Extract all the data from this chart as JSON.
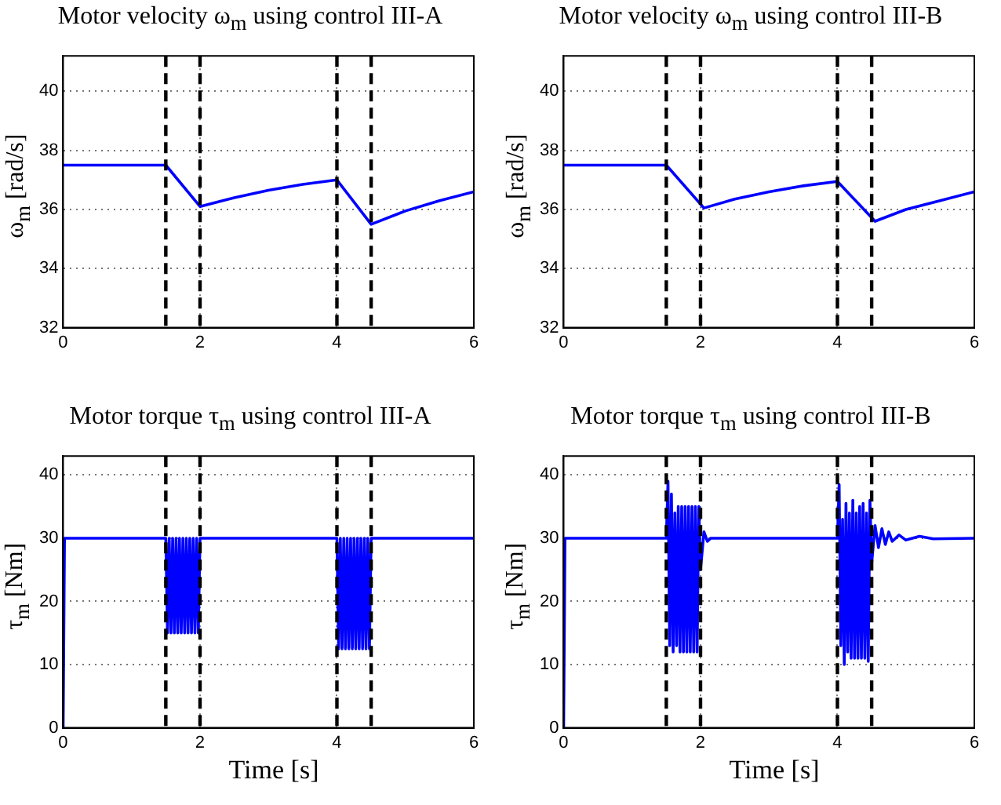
{
  "chart_data": [
    {
      "type": "line",
      "title": "Motor velocity ω$_{m}$ using control III-A",
      "ylabel": "ω$_{m}$ [rad/s]",
      "xlim": [
        0,
        6
      ],
      "xticks": [
        0,
        2,
        4,
        6
      ],
      "ylim": [
        32,
        41.2
      ],
      "yticks": [
        32,
        34,
        36,
        38,
        40
      ],
      "grid": true,
      "line_style": "solid",
      "series": [
        {
          "color": "#0000ff",
          "x": [
            0,
            1.5,
            2.0,
            2.5,
            3.0,
            3.5,
            4.0,
            4.5,
            5.0,
            5.5,
            6
          ],
          "values": [
            37.5,
            37.5,
            36.1,
            36.4,
            36.65,
            36.85,
            37.0,
            35.5,
            35.95,
            36.3,
            36.6
          ]
        }
      ],
      "ref_lines": [
        {
          "axis": "x",
          "value": 1.5,
          "color": "#000000",
          "line_style": "dashed"
        },
        {
          "axis": "x",
          "value": 2,
          "color": "#000000",
          "line_style": "dashed"
        },
        {
          "axis": "x",
          "value": 4,
          "color": "#000000",
          "line_style": "dashed"
        },
        {
          "axis": "x",
          "value": 4.5,
          "color": "#000000",
          "line_style": "dashed"
        }
      ]
    },
    {
      "type": "line",
      "title": "Motor velocity ω$_{m}$ using control III-B",
      "ylabel": "ω$_{m}$ [rad/s]",
      "xlim": [
        0,
        6
      ],
      "xticks": [
        0,
        2,
        4,
        6
      ],
      "ylim": [
        32,
        41.2
      ],
      "yticks": [
        32,
        34,
        36,
        38,
        40
      ],
      "grid": true,
      "line_style": "solid",
      "series": [
        {
          "color": "#0000ff",
          "x": [
            0,
            1.5,
            2.05,
            2.5,
            3.0,
            3.5,
            4.0,
            4.55,
            5.0,
            5.5,
            6
          ],
          "values": [
            37.5,
            37.5,
            36.05,
            36.35,
            36.6,
            36.8,
            36.95,
            35.6,
            36.0,
            36.3,
            36.6
          ]
        }
      ],
      "ref_lines": [
        {
          "axis": "x",
          "value": 1.5,
          "color": "#000000",
          "line_style": "dashed"
        },
        {
          "axis": "x",
          "value": 2,
          "color": "#000000",
          "line_style": "dashed"
        },
        {
          "axis": "x",
          "value": 4,
          "color": "#000000",
          "line_style": "dashed"
        },
        {
          "axis": "x",
          "value": 4.5,
          "color": "#000000",
          "line_style": "dashed"
        }
      ]
    },
    {
      "type": "line",
      "title": "Motor torque τ$_{m}$ using control III-A",
      "xlabel": "Time [s]",
      "ylabel": "τ$_{m}$ [Nm]",
      "xlim": [
        0,
        6
      ],
      "xticks": [
        0,
        2,
        4,
        6
      ],
      "ylim": [
        0,
        43
      ],
      "yticks": [
        0,
        10,
        20,
        30,
        40
      ],
      "grid": true,
      "line_style": "solid",
      "series": [
        {
          "color": "#0000ff",
          "x": [
            0,
            0.02,
            1.5,
            1.525,
            1.55,
            1.575,
            1.6,
            1.625,
            1.65,
            1.675,
            1.7,
            1.725,
            1.75,
            1.775,
            1.8,
            1.825,
            1.85,
            1.875,
            1.9,
            1.925,
            1.95,
            1.975,
            2.0,
            4.0,
            4.025,
            4.05,
            4.075,
            4.1,
            4.125,
            4.15,
            4.175,
            4.2,
            4.225,
            4.25,
            4.275,
            4.3,
            4.325,
            4.35,
            4.375,
            4.4,
            4.425,
            4.45,
            4.475,
            4.5,
            6
          ],
          "values": [
            0,
            30,
            30,
            15,
            30,
            15,
            30,
            15,
            30,
            15,
            30,
            15,
            30,
            15,
            30,
            15,
            30,
            15,
            30,
            15,
            30,
            15,
            30,
            30,
            12.5,
            30,
            12.5,
            30,
            12.5,
            30,
            12.5,
            30,
            12.5,
            30,
            12.5,
            30,
            12.5,
            30,
            12.5,
            30,
            12.5,
            30,
            12.5,
            30,
            30
          ]
        }
      ],
      "ref_lines": [
        {
          "axis": "x",
          "value": 1.5,
          "color": "#000000",
          "line_style": "dashed"
        },
        {
          "axis": "x",
          "value": 2,
          "color": "#000000",
          "line_style": "dashed"
        },
        {
          "axis": "x",
          "value": 4,
          "color": "#000000",
          "line_style": "dashed"
        },
        {
          "axis": "x",
          "value": 4.5,
          "color": "#000000",
          "line_style": "dashed"
        }
      ]
    },
    {
      "type": "line",
      "title": "Motor torque τ$_{m}$ using control III-B",
      "xlabel": "Time [s]",
      "ylabel": "τ$_{m}$ [Nm]",
      "xlim": [
        0,
        6
      ],
      "xticks": [
        0,
        2,
        4,
        6
      ],
      "ylim": [
        0,
        43
      ],
      "yticks": [
        0,
        10,
        20,
        30,
        40
      ],
      "grid": true,
      "line_style": "solid",
      "series": [
        {
          "color": "#0000ff",
          "x": [
            0,
            0.02,
            1.5,
            1.525,
            1.55,
            1.575,
            1.6,
            1.625,
            1.65,
            1.675,
            1.7,
            1.725,
            1.75,
            1.775,
            1.8,
            1.825,
            1.85,
            1.875,
            1.9,
            1.925,
            1.95,
            1.975,
            2.0,
            2.05,
            2.1,
            2.15,
            4.0,
            4.025,
            4.05,
            4.075,
            4.1,
            4.125,
            4.15,
            4.175,
            4.2,
            4.225,
            4.25,
            4.275,
            4.3,
            4.325,
            4.35,
            4.375,
            4.4,
            4.425,
            4.45,
            4.475,
            4.5,
            4.55,
            4.6,
            4.65,
            4.7,
            4.75,
            4.8,
            4.9,
            5.0,
            5.2,
            5.4,
            6
          ],
          "values": [
            0,
            30,
            30,
            39,
            13,
            37,
            12,
            34,
            13,
            35,
            12,
            35,
            12,
            35,
            12,
            35,
            12,
            35,
            12,
            35,
            12,
            35,
            25,
            31,
            29.5,
            30,
            30,
            38.5,
            13,
            33,
            10,
            35.5,
            12,
            34,
            11,
            36,
            11,
            34,
            11,
            35,
            11,
            35.5,
            11,
            34,
            10.5,
            36,
            26,
            32,
            28.5,
            31.5,
            29,
            31,
            29.5,
            30.5,
            29.7,
            30.3,
            29.9,
            30
          ]
        }
      ],
      "ref_lines": [
        {
          "axis": "x",
          "value": 1.5,
          "color": "#000000",
          "line_style": "dashed"
        },
        {
          "axis": "x",
          "value": 2,
          "color": "#000000",
          "line_style": "dashed"
        },
        {
          "axis": "x",
          "value": 4,
          "color": "#000000",
          "line_style": "dashed"
        },
        {
          "axis": "x",
          "value": 4.5,
          "color": "#000000",
          "line_style": "dashed"
        }
      ]
    }
  ]
}
